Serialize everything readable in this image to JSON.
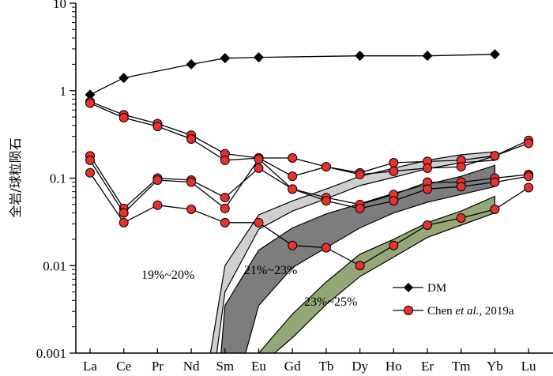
{
  "chart_data": {
    "type": "line",
    "ylabel": "全岩/球粒陨石",
    "y_scale": "log",
    "ylim": [
      0.001,
      10
    ],
    "y_ticks": [
      {
        "value": 10,
        "label": "10"
      },
      {
        "value": 1,
        "label": "1"
      },
      {
        "value": 0.1,
        "label": "0.1"
      },
      {
        "value": 0.01,
        "label": "0.01"
      },
      {
        "value": 0.001,
        "label": "0.001"
      }
    ],
    "categories": [
      "La",
      "Ce",
      "Pr",
      "Nd",
      "Sm",
      "Eu",
      "Gd",
      "Tb",
      "Dy",
      "Ho",
      "Er",
      "Tm",
      "Yb",
      "Lu"
    ],
    "legend": {
      "placement": "bottom-right",
      "entries": [
        {
          "label_plain": "DM",
          "marker": "diamond",
          "color": "#000000"
        },
        {
          "label_plain": "Chen",
          "label_italic": "et al.",
          "label_tail": ", 2019a",
          "marker": "circle",
          "color": "#e8312f"
        }
      ]
    },
    "series": [
      {
        "name": "DM",
        "marker": "diamond",
        "color": "#000000",
        "values": [
          0.9,
          1.4,
          null,
          2.0,
          2.35,
          2.4,
          null,
          null,
          2.5,
          null,
          2.5,
          null,
          2.6,
          null
        ]
      },
      {
        "marker": "circle",
        "color": "#e8312f",
        "values": [
          0.75,
          0.53,
          0.42,
          0.31,
          0.19,
          0.17,
          0.17,
          0.135,
          0.115,
          0.15,
          0.155,
          0.16,
          0.18,
          0.27
        ]
      },
      {
        "marker": "circle",
        "color": "#e8312f",
        "values": [
          0.72,
          0.49,
          0.39,
          0.28,
          0.16,
          0.17,
          0.105,
          0.135,
          0.11,
          0.12,
          0.13,
          0.135,
          0.18,
          0.25
        ]
      },
      {
        "marker": "circle",
        "color": "#e8312f",
        "values": [
          0.18,
          0.045,
          0.1,
          0.095,
          0.06,
          0.13,
          0.075,
          0.06,
          0.05,
          0.065,
          0.09,
          0.09,
          0.1,
          0.11
        ]
      },
      {
        "marker": "circle",
        "color": "#e8312f",
        "values": [
          0.16,
          0.04,
          0.095,
          0.09,
          0.045,
          0.165,
          0.075,
          0.055,
          0.045,
          0.055,
          0.075,
          0.08,
          0.09,
          0.105
        ]
      },
      {
        "marker": "circle",
        "color": "#e8312f",
        "values": [
          0.115,
          0.031,
          0.049,
          0.044,
          0.031,
          0.031,
          0.017,
          0.016,
          0.01,
          0.017,
          0.029,
          0.035,
          0.044,
          0.078
        ]
      }
    ],
    "bands": [
      {
        "label": "19%~20%",
        "color": "#cfcfcf",
        "upper": [
          [
            3.5,
            0.0007
          ],
          [
            4,
            0.01
          ],
          [
            5,
            0.038
          ],
          [
            6,
            0.055
          ],
          [
            7,
            0.075
          ],
          [
            8,
            0.105
          ],
          [
            9,
            0.13
          ],
          [
            10,
            0.16
          ],
          [
            11,
            0.185
          ],
          [
            12,
            0.2
          ]
        ],
        "lower": [
          [
            3.7,
            0.0007
          ],
          [
            4,
            0.005
          ],
          [
            5,
            0.026
          ],
          [
            6,
            0.042
          ],
          [
            7,
            0.058
          ],
          [
            8,
            0.082
          ],
          [
            9,
            0.102
          ],
          [
            10,
            0.128
          ],
          [
            11,
            0.15
          ],
          [
            12,
            0.16
          ]
        ]
      },
      {
        "label": "21%~23%",
        "color": "#7d7d7d",
        "upper": [
          [
            3.85,
            0.0007
          ],
          [
            4,
            0.0035
          ],
          [
            5,
            0.015
          ],
          [
            6,
            0.027
          ],
          [
            7,
            0.039
          ],
          [
            8,
            0.051
          ],
          [
            9,
            0.067
          ],
          [
            10,
            0.085
          ],
          [
            11,
            0.105
          ],
          [
            12,
            0.14
          ]
        ],
        "lower": [
          [
            4.5,
            0.0007
          ],
          [
            5,
            0.0035
          ],
          [
            6,
            0.0095
          ],
          [
            7,
            0.016
          ],
          [
            8,
            0.027
          ],
          [
            9,
            0.04
          ],
          [
            10,
            0.053
          ],
          [
            11,
            0.065
          ],
          [
            12,
            0.08
          ]
        ]
      },
      {
        "label": "23%~25%",
        "color": "#93a876",
        "upper": [
          [
            5,
            0.001
          ],
          [
            6,
            0.0028
          ],
          [
            7,
            0.0065
          ],
          [
            8,
            0.0135
          ],
          [
            9,
            0.02
          ],
          [
            10,
            0.031
          ],
          [
            11,
            0.042
          ],
          [
            12,
            0.062
          ]
        ],
        "lower": [
          [
            4.75,
            0.0007
          ],
          [
            5,
            0.0007
          ],
          [
            6,
            0.0015
          ],
          [
            7,
            0.0036
          ],
          [
            8,
            0.0075
          ],
          [
            9,
            0.0125
          ],
          [
            10,
            0.021
          ],
          [
            11,
            0.029
          ],
          [
            12,
            0.04
          ]
        ]
      }
    ]
  }
}
